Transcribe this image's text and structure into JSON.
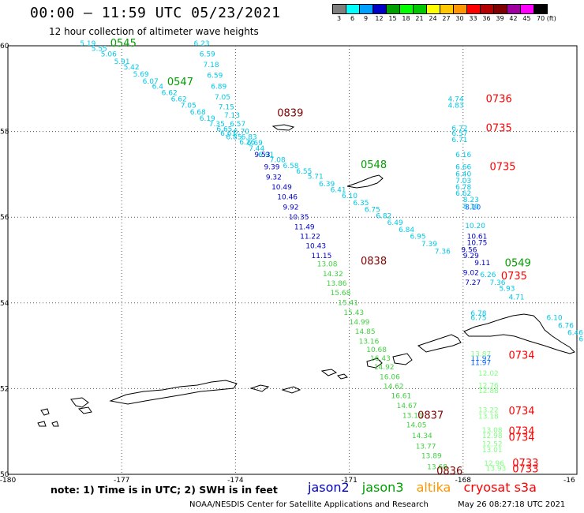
{
  "header": {
    "title": "00:00 – 11:59 UTC 05/23/2021",
    "subtitle": "12 hour collection of altimeter wave heights"
  },
  "scale": {
    "colors": [
      "#7f7f7f",
      "#00ffff",
      "#00a0ff",
      "#0000c8",
      "#00a000",
      "#00ff00",
      "#00c800",
      "#ffff00",
      "#ffc800",
      "#ff9600",
      "#ff0000",
      "#b40000",
      "#800000",
      "#a000a0",
      "#ff00ff",
      "#000000"
    ],
    "labels": [
      "3",
      "6",
      "9",
      "12",
      "15",
      "18",
      "21",
      "24",
      "27",
      "30",
      "33",
      "36",
      "39",
      "42",
      "45",
      "70 (ft)"
    ]
  },
  "axes": {
    "lon_ticks": [
      "-180",
      "-177",
      "-174",
      "-171",
      "-168",
      "-16"
    ],
    "lat_ticks": [
      "60",
      "58",
      "56",
      "54",
      "52",
      "50"
    ]
  },
  "colors": {
    "jason2": "#0000c8",
    "jason3": "#00a000",
    "altika": "#ff9600",
    "cryosat": "#ff0000",
    "dark_red": "#800000",
    "cyan": "#00c8e6",
    "light_green": "#40d040",
    "bright_green": "#80ff80",
    "mid_blue": "#0060ff"
  },
  "time_labels": [
    {
      "t": "0545",
      "lon": -177.3,
      "lat": 59.98,
      "c": "#00a000"
    },
    {
      "t": "0547",
      "lon": -175.8,
      "lat": 59.08,
      "c": "#00a000"
    },
    {
      "t": "0839",
      "lon": -172.9,
      "lat": 58.35,
      "c": "#800000"
    },
    {
      "t": "0548",
      "lon": -170.7,
      "lat": 57.15,
      "c": "#00a000"
    },
    {
      "t": "0838",
      "lon": -170.7,
      "lat": 54.9,
      "c": "#800000"
    },
    {
      "t": "0837",
      "lon": -169.2,
      "lat": 51.3,
      "c": "#800000"
    },
    {
      "t": "0836",
      "lon": -168.7,
      "lat": 50.0,
      "c": "#800000"
    },
    {
      "t": "0736",
      "lon": -167.4,
      "lat": 58.68,
      "c": "#ff0000"
    },
    {
      "t": "0735",
      "lon": -167.4,
      "lat": 58.0,
      "c": "#ff0000"
    },
    {
      "t": "0735",
      "lon": -167.3,
      "lat": 57.1,
      "c": "#ff0000"
    },
    {
      "t": "0549",
      "lon": -166.9,
      "lat": 54.85,
      "c": "#00a000"
    },
    {
      "t": "0735",
      "lon": -167.0,
      "lat": 54.55,
      "c": "#ff0000"
    },
    {
      "t": "0734",
      "lon": -166.8,
      "lat": 52.7,
      "c": "#ff0000"
    },
    {
      "t": "0734",
      "lon": -166.8,
      "lat": 51.4,
      "c": "#ff0000"
    },
    {
      "t": "0734",
      "lon": -166.8,
      "lat": 50.93,
      "c": "#ff0000"
    },
    {
      "t": "0734",
      "lon": -166.8,
      "lat": 50.78,
      "c": "#ff0000"
    },
    {
      "t": "0733",
      "lon": -166.7,
      "lat": 50.18,
      "c": "#ff0000"
    },
    {
      "t": "0733",
      "lon": -166.7,
      "lat": 50.05,
      "c": "#ff0000"
    }
  ],
  "tracks": [
    {
      "name": "jason3-west",
      "color": "#00c8e6",
      "points": [
        [
          "5.19",
          -178.1,
          60.0
        ],
        [
          "5.55",
          -177.8,
          59.88
        ],
        [
          "5.06",
          -177.55,
          59.75
        ],
        [
          "5.91",
          -177.2,
          59.58
        ],
        [
          "5.42",
          -176.95,
          59.45
        ],
        [
          "5.69",
          -176.7,
          59.28
        ],
        [
          "6.07",
          -176.45,
          59.12
        ],
        [
          "6.4",
          -176.2,
          59.0
        ],
        [
          "6.62",
          -175.95,
          58.85
        ],
        [
          "6.62",
          -175.7,
          58.7
        ],
        [
          "7.05",
          -175.45,
          58.55
        ],
        [
          "6.68",
          -175.2,
          58.4
        ],
        [
          "6.19",
          -174.95,
          58.25
        ],
        [
          "7.35",
          -174.7,
          58.12
        ],
        [
          "6.65",
          -174.5,
          58.0
        ],
        [
          "6.61",
          -174.4,
          57.9
        ],
        [
          "6.85",
          -174.25,
          57.82
        ],
        [
          "6.26",
          -173.9,
          57.7
        ],
        [
          "7.44",
          -173.65,
          57.55
        ],
        [
          "6.91",
          -173.4,
          57.4
        ],
        [
          "7.08",
          -173.1,
          57.28
        ],
        [
          "6.58",
          -172.75,
          57.15
        ],
        [
          "6.55",
          -172.4,
          57.02
        ],
        [
          "5.71",
          -172.1,
          56.9
        ],
        [
          "6.39",
          -171.8,
          56.72
        ],
        [
          "6.41",
          -171.5,
          56.58
        ],
        [
          "6.10",
          -171.2,
          56.45
        ],
        [
          "6.35",
          -170.9,
          56.28
        ],
        [
          "6.75",
          -170.6,
          56.12
        ],
        [
          "6.82",
          -170.3,
          55.98
        ],
        [
          "6.49",
          -170.0,
          55.82
        ],
        [
          "6.84",
          -169.7,
          55.65
        ],
        [
          "6.95",
          -169.4,
          55.5
        ],
        [
          "7.39",
          -169.1,
          55.32
        ],
        [
          "7.36",
          -168.75,
          55.15
        ]
      ]
    },
    {
      "name": "jason3-north",
      "color": "#00c8e6",
      "points": [
        [
          "6.23",
          -175.1,
          60.0
        ],
        [
          "6.59",
          -174.95,
          59.75
        ],
        [
          "7.18",
          -174.85,
          59.5
        ],
        [
          "6.59",
          -174.75,
          59.25
        ],
        [
          "6.89",
          -174.65,
          59.0
        ],
        [
          "7.05",
          -174.55,
          58.75
        ],
        [
          "7.15",
          -174.45,
          58.52
        ],
        [
          "7.13",
          -174.3,
          58.32
        ],
        [
          "6.57",
          -174.15,
          58.12
        ],
        [
          "6.70",
          -174.05,
          57.95
        ],
        [
          "6.83",
          -173.85,
          57.82
        ],
        [
          "6.69",
          -173.7,
          57.68
        ]
      ]
    },
    {
      "name": "jason2-west",
      "color": "#0000c8",
      "points": [
        [
          "9.53",
          -173.5,
          57.4
        ],
        [
          "9.39",
          -173.25,
          57.12
        ],
        [
          "9.32",
          -173.2,
          56.88
        ],
        [
          "10.49",
          -173.05,
          56.65
        ],
        [
          "10.46",
          -172.9,
          56.42
        ],
        [
          "9.92",
          -172.75,
          56.18
        ],
        [
          "10.35",
          -172.6,
          55.95
        ],
        [
          "11.49",
          -172.45,
          55.72
        ],
        [
          "11.22",
          -172.3,
          55.5
        ],
        [
          "10.43",
          -172.15,
          55.28
        ],
        [
          "11.15",
          -172.0,
          55.05
        ]
      ]
    },
    {
      "name": "jason3-green",
      "color": "#40d040",
      "points": [
        [
          "13.08",
          -171.85,
          54.85
        ],
        [
          "14.32",
          -171.7,
          54.62
        ],
        [
          "13.86",
          -171.6,
          54.4
        ],
        [
          "15.68",
          -171.5,
          54.18
        ],
        [
          "15.41",
          -171.3,
          53.95
        ],
        [
          "15.43",
          -171.15,
          53.72
        ],
        [
          "14.99",
          -171.0,
          53.5
        ],
        [
          "14.85",
          -170.85,
          53.28
        ],
        [
          "13.16",
          -170.75,
          53.05
        ],
        [
          "10.68",
          -170.55,
          52.85
        ],
        [
          "16.43",
          -170.45,
          52.65
        ],
        [
          "14.92",
          -170.35,
          52.45
        ],
        [
          "16.06",
          -170.2,
          52.22
        ],
        [
          "14.62",
          -170.1,
          52.0
        ],
        [
          "16.61",
          -169.9,
          51.78
        ],
        [
          "14.67",
          -169.75,
          51.55
        ],
        [
          "13.13",
          -169.6,
          51.32
        ],
        [
          "14.05",
          -169.5,
          51.1
        ],
        [
          "14.34",
          -169.35,
          50.85
        ],
        [
          "13.77",
          -169.25,
          50.6
        ],
        [
          "13.89",
          -169.1,
          50.38
        ],
        [
          "13.68",
          -168.95,
          50.12
        ]
      ]
    },
    {
      "name": "jason2-north",
      "color": "#0000c8",
      "points": [
        [
          "10.61",
          -167.9,
          55.5
        ],
        [
          "10.75",
          -167.9,
          55.35
        ],
        [
          "9.56",
          -168.05,
          55.18
        ],
        [
          "9.29",
          -168.0,
          55.05
        ],
        [
          "9.11",
          -167.7,
          54.88
        ],
        [
          "9.02",
          -168.0,
          54.65
        ],
        [
          "7.27",
          -167.95,
          54.42
        ]
      ]
    },
    {
      "name": "cyan-east",
      "color": "#00c8e6",
      "points": [
        [
          "6.26",
          -167.55,
          54.6
        ],
        [
          "7.36",
          -167.3,
          54.42
        ],
        [
          "5.93",
          -167.05,
          54.28
        ],
        [
          "4.71",
          -166.8,
          54.08
        ],
        [
          "6.10",
          -165.8,
          53.6
        ],
        [
          "6.76",
          -165.5,
          53.42
        ],
        [
          "6.46",
          -165.25,
          53.25
        ],
        [
          "6.13",
          -164.95,
          53.1
        ],
        [
          "6.78",
          -167.8,
          53.7
        ],
        [
          "6.75",
          -167.8,
          53.6
        ]
      ]
    },
    {
      "name": "cryo-col",
      "color": "#00c8e6",
      "points": [
        [
          "4.74",
          -168.4,
          58.7
        ],
        [
          "4.83",
          -168.4,
          58.55
        ],
        [
          "6.72",
          -168.3,
          58.02
        ],
        [
          "6.57",
          -168.3,
          57.9
        ],
        [
          "6.71",
          -168.3,
          57.75
        ],
        [
          "6.16",
          -168.2,
          57.4
        ],
        [
          "6.66",
          -168.2,
          57.12
        ],
        [
          "6.40",
          -168.2,
          56.95
        ],
        [
          "7.03",
          -168.2,
          56.8
        ],
        [
          "6.78",
          -168.2,
          56.65
        ],
        [
          "6.62",
          -168.2,
          56.5
        ],
        [
          "8.23",
          -168.0,
          56.35
        ],
        [
          "8.10",
          -168.0,
          56.2
        ],
        [
          "10.20",
          -167.95,
          55.75
        ]
      ]
    },
    {
      "name": "blue-col",
      "color": "#0060ff",
      "points": [
        [
          "8.10",
          -167.95,
          56.18
        ],
        [
          "11.97",
          -167.8,
          52.55
        ],
        [
          "11.97",
          -167.8,
          52.65
        ]
      ]
    },
    {
      "name": "green-col",
      "color": "#80ff80",
      "points": [
        [
          "13.87",
          -167.8,
          52.75
        ],
        [
          "12.02",
          -167.6,
          52.3
        ],
        [
          "12.76",
          -167.6,
          52.02
        ],
        [
          "12.88",
          -167.6,
          51.9
        ],
        [
          "13.22",
          -167.6,
          51.45
        ],
        [
          "13.18",
          -167.6,
          51.3
        ],
        [
          "13.08",
          -167.5,
          50.98
        ],
        [
          "12.98",
          -167.5,
          50.85
        ],
        [
          "12.52",
          -167.5,
          50.65
        ],
        [
          "13.01",
          -167.5,
          50.52
        ],
        [
          "12.96",
          -167.45,
          50.2
        ],
        [
          "13.93",
          -167.4,
          50.08
        ]
      ]
    }
  ],
  "legend": {
    "note": "note:  1) Time is in UTC;  2) SWH is in feet",
    "jason2": "jason2",
    "jason3": "jason3",
    "altika": "altika",
    "cryosat": "cryosat s3a"
  },
  "footer": {
    "credit": "NOAA/NESDIS Center for Satellite Applications and Research",
    "timestamp": "May 26 08:27:18 UTC 2021"
  }
}
